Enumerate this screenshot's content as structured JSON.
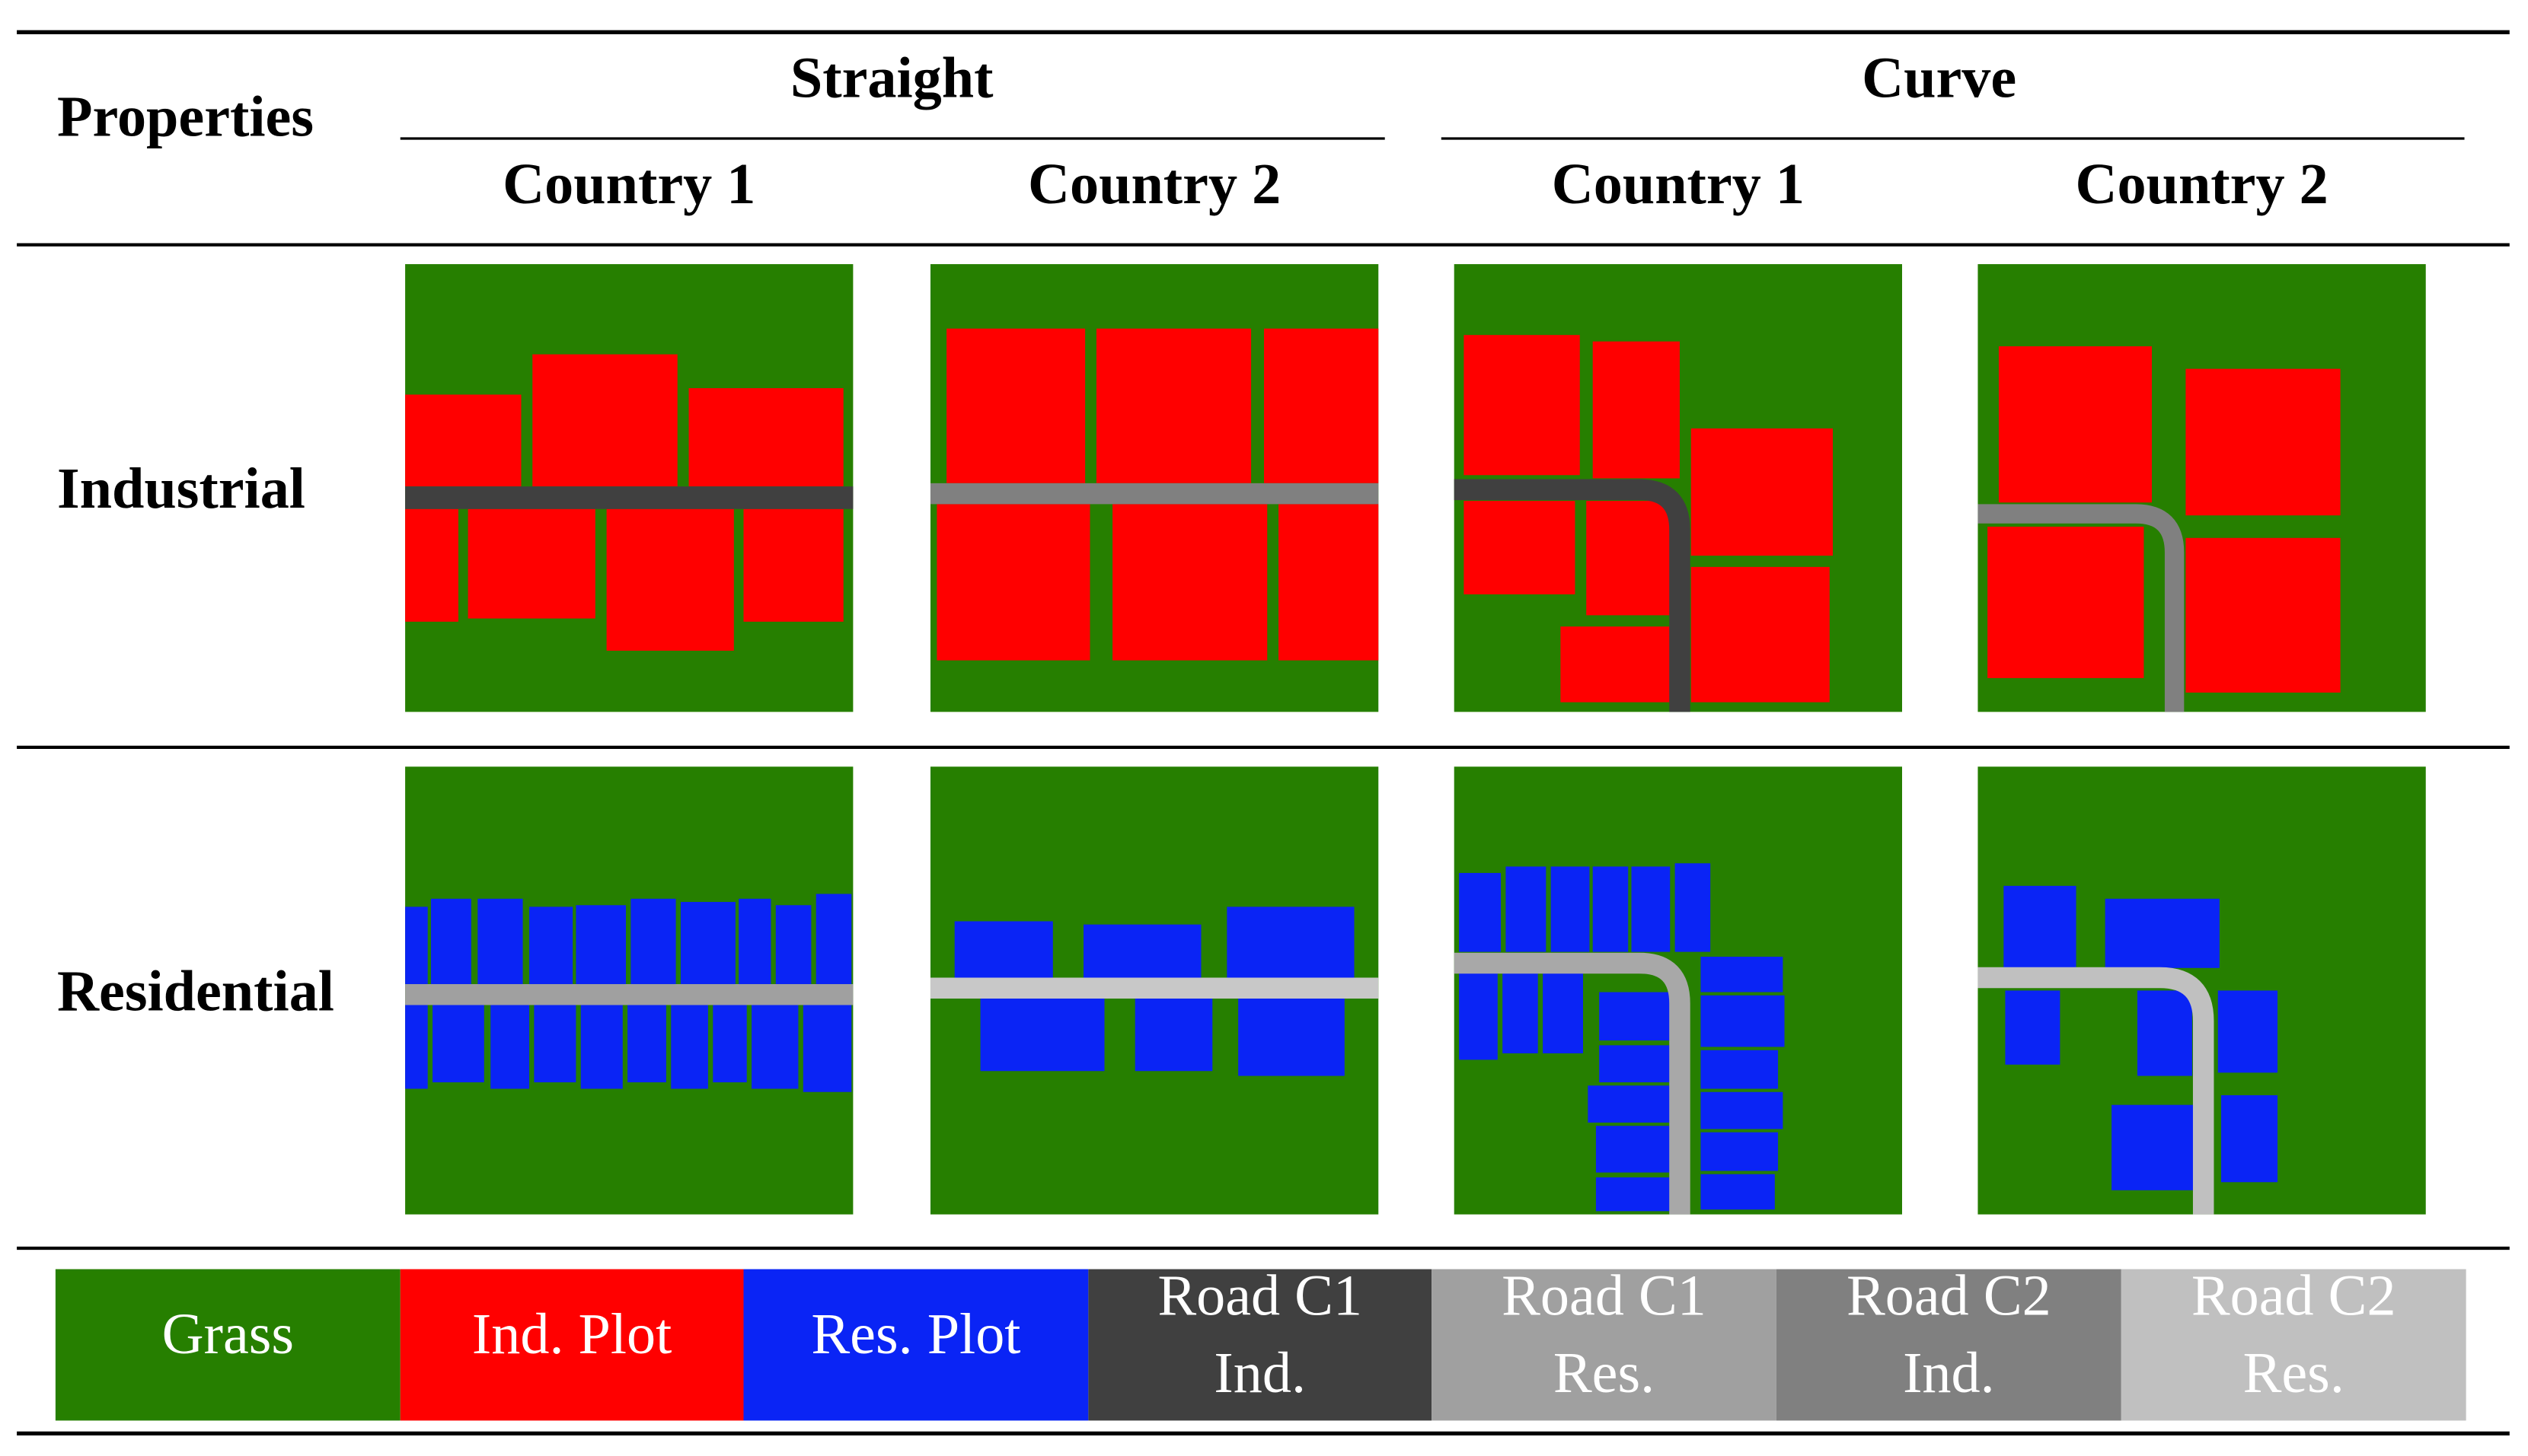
{
  "table": {
    "corner": "Properties",
    "groups": [
      "Straight",
      "Curve"
    ],
    "columns": [
      "Country 1",
      "Country 2",
      "Country 1",
      "Country 2"
    ],
    "rows": [
      "Industrial",
      "Residential"
    ]
  },
  "legend": [
    {
      "lines": [
        "Grass"
      ],
      "color": "#267f00"
    },
    {
      "lines": [
        "Ind. Plot"
      ],
      "color": "#ff0000"
    },
    {
      "lines": [
        "Res. Plot"
      ],
      "color": "#0a24f5"
    },
    {
      "lines": [
        "Road C1",
        "Ind."
      ],
      "color": "#404040"
    },
    {
      "lines": [
        "Road C1",
        "Res."
      ],
      "color": "#a0a0a0"
    },
    {
      "lines": [
        "Road C2",
        "Ind."
      ],
      "color": "#808080"
    },
    {
      "lines": [
        "Road C2",
        "Res."
      ],
      "color": "#c0c0c0"
    }
  ]
}
